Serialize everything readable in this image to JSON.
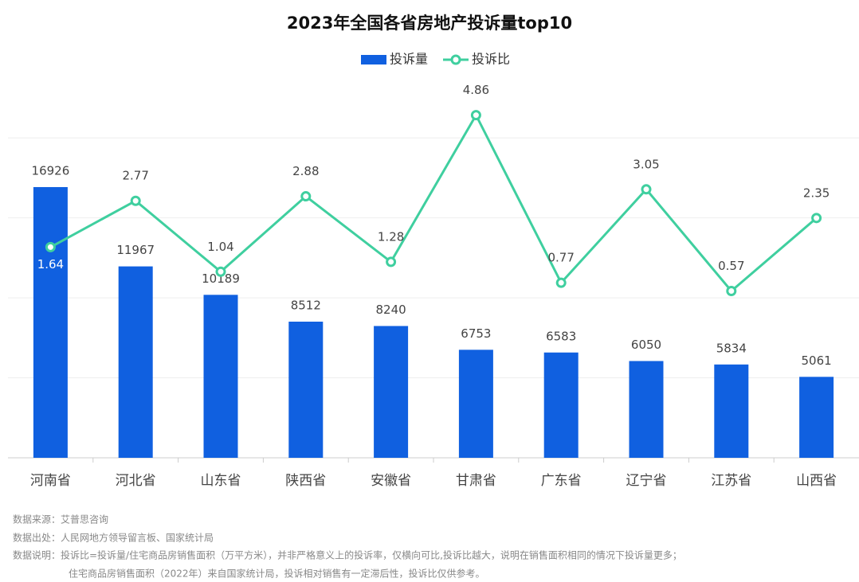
{
  "chart_data": {
    "type": "bar",
    "title": "2023年全国各省房地产投诉量top10",
    "categories": [
      "河南省",
      "河北省",
      "山东省",
      "陕西省",
      "安徽省",
      "甘肃省",
      "广东省",
      "辽宁省",
      "江苏省",
      "山西省"
    ],
    "series": [
      {
        "name": "投诉量",
        "type": "bar",
        "color": "#1060e0",
        "values": [
          16926,
          11967,
          10189,
          8512,
          8240,
          6753,
          6583,
          6050,
          5834,
          5061
        ]
      },
      {
        "name": "投诉比",
        "type": "line",
        "axis": "y2",
        "color": "#3fcf9f",
        "values": [
          1.64,
          2.77,
          1.04,
          2.88,
          1.28,
          4.86,
          0.77,
          3.05,
          0.57,
          2.35
        ]
      }
    ],
    "ylim": [
      0,
      22500
    ],
    "yticks": [
      0,
      5000,
      10000,
      15000,
      20000
    ],
    "y2lim": [
      -3.5,
      5.28
    ],
    "grid": true,
    "legend": "top",
    "notes": [
      "数据来源：艾普思咨询",
      "数据出处：人民网地方领导留言板、国家统计局",
      "数据说明：投诉比=投诉量/住宅商品房销售面积（万平方米），并非严格意义上的投诉率，仅横向可比,投诉比越大，说明在销售面积相同的情况下投诉量更多；",
      "住宅商品房销售面积（2022年）来自国家统计局，投诉相对销售有一定滞后性，投诉比仅供参考。"
    ]
  }
}
